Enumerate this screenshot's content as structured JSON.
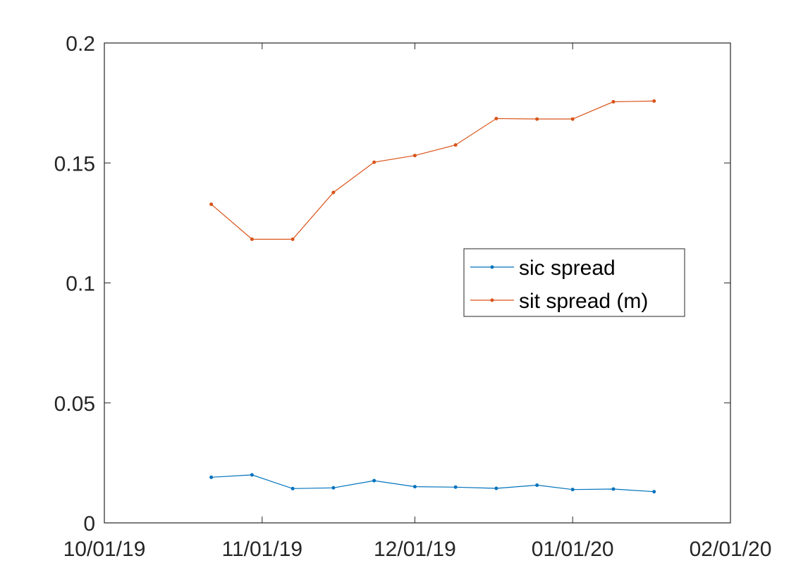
{
  "chart_data": {
    "type": "line",
    "title": "",
    "xlabel": "",
    "ylabel": "",
    "xlim": [
      "10/01/19",
      "02/01/20"
    ],
    "ylim": [
      0,
      0.2
    ],
    "x_ticks": [
      "10/01/19",
      "11/01/19",
      "12/01/19",
      "01/01/20",
      "02/01/20"
    ],
    "y_ticks": [
      "0",
      "0.05",
      "0.1",
      "0.15",
      "0.2"
    ],
    "x": [
      "10/22/19",
      "10/30/19",
      "11/07/19",
      "11/15/19",
      "11/23/19",
      "12/01/19",
      "12/09/19",
      "12/17/19",
      "12/25/19",
      "01/01/20",
      "01/09/20",
      "01/17/20"
    ],
    "series": [
      {
        "name": "sic spread",
        "color": "#0072BD",
        "values": [
          0.019,
          0.02,
          0.0143,
          0.0146,
          0.0176,
          0.0151,
          0.0149,
          0.0144,
          0.0157,
          0.0139,
          0.0141,
          0.013
        ]
      },
      {
        "name": "sit spread (m)",
        "color": "#D95319",
        "values": [
          0.1328,
          0.1182,
          0.1182,
          0.1377,
          0.1503,
          0.1531,
          0.1575,
          0.1685,
          0.1683,
          0.1683,
          0.1755,
          0.1758
        ]
      }
    ],
    "legend_position": "middle-right",
    "grid": false
  }
}
